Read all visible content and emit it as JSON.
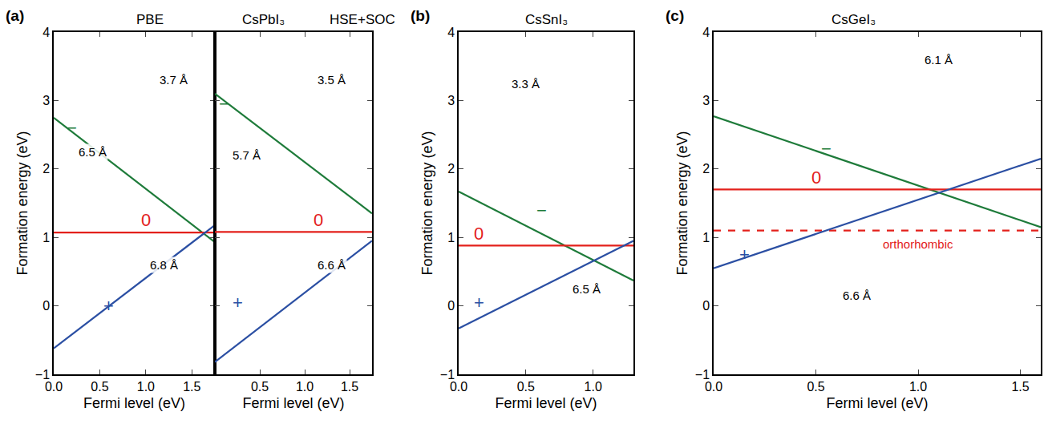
{
  "chart_data": [
    {
      "type": "line",
      "panel_label": "(a)",
      "title": "PBE",
      "group_title": "CsPbI₃",
      "x_label": "Fermi level (eV)",
      "y_label": "Formation energy (eV)",
      "xlim": [
        0,
        1.75
      ],
      "xticks": [
        {
          "value": 0,
          "label": "0.0"
        },
        {
          "value": 0.5,
          "label": "0.5"
        },
        {
          "value": 1,
          "label": "1.0"
        },
        {
          "value": 1.5,
          "label": "1.5"
        }
      ],
      "ylim": [
        -1,
        4
      ],
      "yticks": [
        {
          "value": -1,
          "label": "−1"
        },
        0,
        1,
        2,
        3,
        4
      ],
      "series": [
        {
          "color": "#1e7b3a",
          "x": [
            0,
            1.75
          ],
          "values": [
            2.75,
            0.93
          ],
          "line_style": "solid"
        },
        {
          "color": "#e3201b",
          "x": [
            0,
            1.75
          ],
          "values": [
            1.07,
            1.07
          ],
          "line_style": "solid"
        },
        {
          "color": "#2b4fa3",
          "x": [
            0,
            1.75
          ],
          "values": [
            -0.62,
            1.18
          ],
          "line_style": "solid"
        }
      ],
      "annotations": [
        {
          "text": "−",
          "x": 0.2,
          "y": 2.6,
          "color": "#1e7b3a"
        },
        {
          "text": "0",
          "x": 1.0,
          "y": 1.25,
          "color": "#e3201b"
        },
        {
          "text": "+",
          "x": 0.6,
          "y": 0.0,
          "color": "#2b4fa3"
        },
        {
          "text": "6.5 Å",
          "x": 0.42,
          "y": 2.25,
          "color": "#000000"
        },
        {
          "text": "3.7 Å",
          "x": 1.3,
          "y": 3.3,
          "color": "#000000"
        },
        {
          "text": "6.8 Å",
          "x": 1.2,
          "y": 0.6,
          "color": "#000000"
        }
      ]
    },
    {
      "type": "line",
      "title": "HSE+SOC",
      "tick_labels": "x",
      "x_label": "Fermi level (eV)",
      "xlim": [
        0,
        1.75
      ],
      "xticks": [
        {
          "value": 0.5,
          "label": "0.5"
        },
        {
          "value": 1,
          "label": "1.0"
        },
        {
          "value": 1.5,
          "label": "1.5"
        }
      ],
      "ylim": [
        -1,
        4
      ],
      "yticks": [
        -1,
        0,
        1,
        2,
        3,
        4
      ],
      "series": [
        {
          "color": "#1e7b3a",
          "x": [
            0,
            1.75
          ],
          "values": [
            3.1,
            1.35
          ],
          "line_style": "solid"
        },
        {
          "color": "#e3201b",
          "x": [
            0,
            1.75
          ],
          "values": [
            1.08,
            1.08
          ],
          "line_style": "solid"
        },
        {
          "color": "#2b4fa3",
          "x": [
            0,
            1.75
          ],
          "values": [
            -0.82,
            0.95
          ],
          "line_style": "solid"
        }
      ],
      "annotations": [
        {
          "text": "−",
          "x": 0.1,
          "y": 2.95,
          "color": "#1e7b3a"
        },
        {
          "text": "0",
          "x": 1.15,
          "y": 1.25,
          "color": "#e3201b"
        },
        {
          "text": "+",
          "x": 0.25,
          "y": 0.05,
          "color": "#2b4fa3"
        },
        {
          "text": "5.7 Å",
          "x": 0.35,
          "y": 2.2,
          "color": "#000000"
        },
        {
          "text": "3.5 Å",
          "x": 1.3,
          "y": 3.3,
          "color": "#000000"
        },
        {
          "text": "6.6 Å",
          "x": 1.3,
          "y": 0.6,
          "color": "#000000"
        }
      ]
    },
    {
      "type": "line",
      "panel_label": "(b)",
      "title": "CsSnI₃",
      "x_label": "Fermi level (eV)",
      "y_label": "Formation energy (eV)",
      "xlim": [
        0,
        1.3
      ],
      "xticks": [
        {
          "value": 0,
          "label": "0.0"
        },
        {
          "value": 0.5,
          "label": "0.5"
        },
        {
          "value": 1,
          "label": "1.0"
        }
      ],
      "ylim": [
        -1,
        4
      ],
      "yticks": [
        {
          "value": -1,
          "label": "−1"
        },
        0,
        1,
        2,
        3,
        4
      ],
      "series": [
        {
          "color": "#1e7b3a",
          "x": [
            0,
            1.3
          ],
          "values": [
            1.67,
            0.37
          ],
          "line_style": "solid"
        },
        {
          "color": "#e3201b",
          "x": [
            0,
            1.3
          ],
          "values": [
            0.88,
            0.88
          ],
          "line_style": "solid"
        },
        {
          "color": "#2b4fa3",
          "x": [
            0,
            1.3
          ],
          "values": [
            -0.33,
            0.95
          ],
          "line_style": "solid"
        }
      ],
      "annotations": [
        {
          "text": "−",
          "x": 0.62,
          "y": 1.4,
          "color": "#1e7b3a"
        },
        {
          "text": "0",
          "x": 0.15,
          "y": 1.05,
          "color": "#e3201b"
        },
        {
          "text": "+",
          "x": 0.15,
          "y": 0.05,
          "color": "#2b4fa3"
        },
        {
          "text": "3.3 Å",
          "x": 0.5,
          "y": 3.25,
          "color": "#000000"
        },
        {
          "text": "6.5 Å",
          "x": 0.95,
          "y": 0.25,
          "color": "#000000"
        }
      ]
    },
    {
      "type": "line",
      "panel_label": "(c)",
      "title": "CsGeI₃",
      "x_label": "Fermi level (eV)",
      "y_label": "Formation energy (eV)",
      "xlim": [
        0,
        1.6
      ],
      "xticks": [
        {
          "value": 0,
          "label": "0.0"
        },
        {
          "value": 0.5,
          "label": "0.5"
        },
        {
          "value": 1,
          "label": "1.0"
        },
        {
          "value": 1.5,
          "label": "1.5"
        }
      ],
      "ylim": [
        -1,
        4
      ],
      "yticks": [
        {
          "value": -1,
          "label": "−1"
        },
        0,
        1,
        2,
        3,
        4
      ],
      "series": [
        {
          "color": "#1e7b3a",
          "x": [
            0,
            1.6
          ],
          "values": [
            2.77,
            1.15
          ],
          "line_style": "solid"
        },
        {
          "color": "#e3201b",
          "x": [
            0,
            1.6
          ],
          "values": [
            1.7,
            1.7
          ],
          "line_style": "solid"
        },
        {
          "color": "#e3201b",
          "x": [
            0,
            1.6
          ],
          "values": [
            1.1,
            1.1
          ],
          "line_style": "dash"
        },
        {
          "color": "#2b4fa3",
          "x": [
            0,
            1.6
          ],
          "values": [
            0.55,
            2.15
          ],
          "line_style": "solid"
        }
      ],
      "annotations": [
        {
          "text": "−",
          "x": 0.55,
          "y": 2.3,
          "color": "#1e7b3a"
        },
        {
          "text": "0",
          "x": 0.5,
          "y": 1.88,
          "color": "#e3201b"
        },
        {
          "text": "orthorhombic",
          "x": 1.0,
          "y": 0.9,
          "color": "#e3201b"
        },
        {
          "text": "+",
          "x": 0.15,
          "y": 0.75,
          "color": "#2b4fa3"
        },
        {
          "text": "6.1 Å",
          "x": 1.1,
          "y": 3.6,
          "color": "#000000"
        },
        {
          "text": "6.6 Å",
          "x": 0.7,
          "y": 0.15,
          "color": "#000000"
        }
      ]
    }
  ]
}
